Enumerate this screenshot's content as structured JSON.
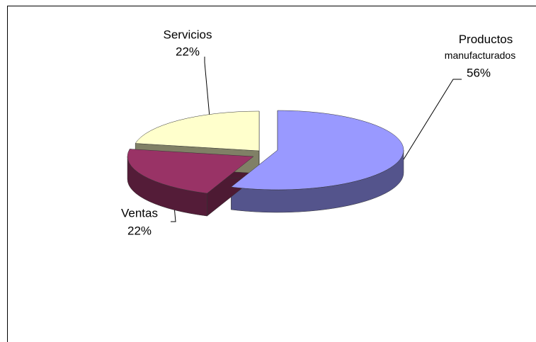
{
  "chart_data": {
    "type": "pie",
    "categories": [
      "Productos manufacturados",
      "Servicios",
      "Ventas"
    ],
    "values": [
      56,
      22,
      22
    ],
    "value_labels": [
      "56%",
      "22%",
      "22%"
    ],
    "colors": [
      "#9999ff",
      "#993366",
      "#ffffcc"
    ]
  }
}
